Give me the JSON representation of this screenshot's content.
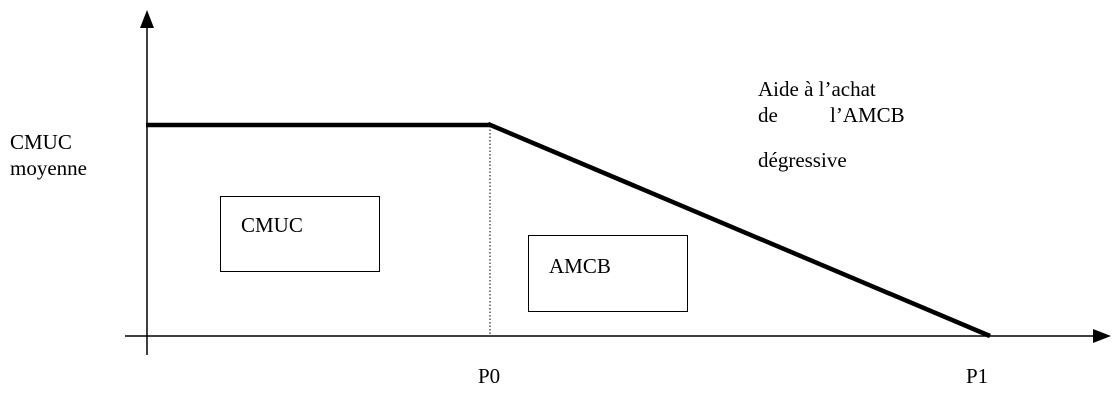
{
  "y_axis_label": {
    "line1": "CMUC",
    "line2": "moyenne"
  },
  "x_ticks": [
    "P0",
    "P1"
  ],
  "regions": {
    "cmuc_box": "CMUC",
    "amcb_box": "AMCB"
  },
  "annotation": {
    "line1": "Aide à l’achat",
    "line2_word1": "de",
    "line2_word2": "l’AMCB",
    "line3": "dégressive"
  },
  "colors": {
    "ink": "#000000",
    "background": "#ffffff"
  }
}
